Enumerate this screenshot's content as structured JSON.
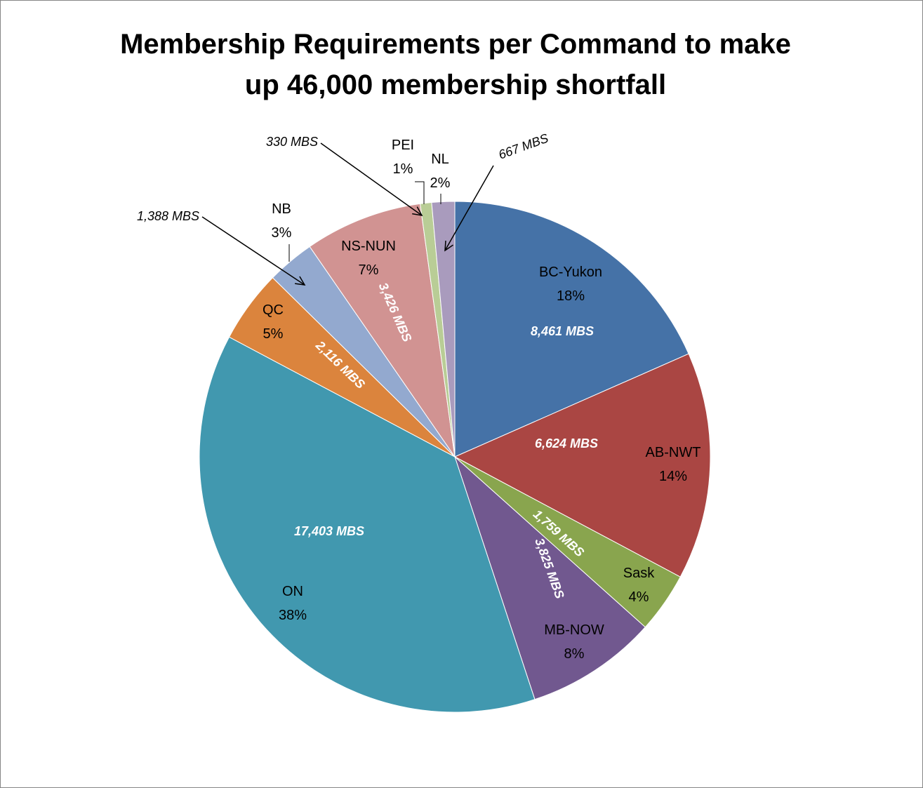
{
  "chart_data": {
    "type": "pie",
    "title_lines": [
      "Membership Requirements per Command to make",
      "up 46,000 membership shortfall"
    ],
    "slices": [
      {
        "name": "BC-Yukon",
        "pct_label": "18%",
        "value": 8461,
        "value_label": "8,461 MBS",
        "color": "#4572A7"
      },
      {
        "name": "AB-NWT",
        "pct_label": "14%",
        "value": 6624,
        "value_label": "6,624 MBS",
        "color": "#AA4643"
      },
      {
        "name": "Sask",
        "pct_label": "4%",
        "value": 1759,
        "value_label": "1,759 MBS",
        "color": "#89A54E"
      },
      {
        "name": "MB-NOW",
        "pct_label": "8%",
        "value": 3825,
        "value_label": "3,825 MBS",
        "color": "#71588F"
      },
      {
        "name": "ON",
        "pct_label": "38%",
        "value": 17403,
        "value_label": "17,403 MBS",
        "color": "#4198AF"
      },
      {
        "name": "QC",
        "pct_label": "5%",
        "value": 2116,
        "value_label": "2,116 MBS",
        "color": "#DB843D"
      },
      {
        "name": "NB",
        "pct_label": "3%",
        "value": 1388,
        "value_label": "1,388 MBS",
        "color": "#93A9CF"
      },
      {
        "name": "NS-NUN",
        "pct_label": "7%",
        "value": 3426,
        "value_label": "3,426 MBS",
        "color": "#D19392"
      },
      {
        "name": "PEI",
        "pct_label": "1%",
        "value": 330,
        "value_label": "330 MBS",
        "color": "#B9CD96"
      },
      {
        "name": "NL",
        "pct_label": "2%",
        "value": 667,
        "value_label": "667 MBS",
        "color": "#A99BBD"
      }
    ]
  }
}
